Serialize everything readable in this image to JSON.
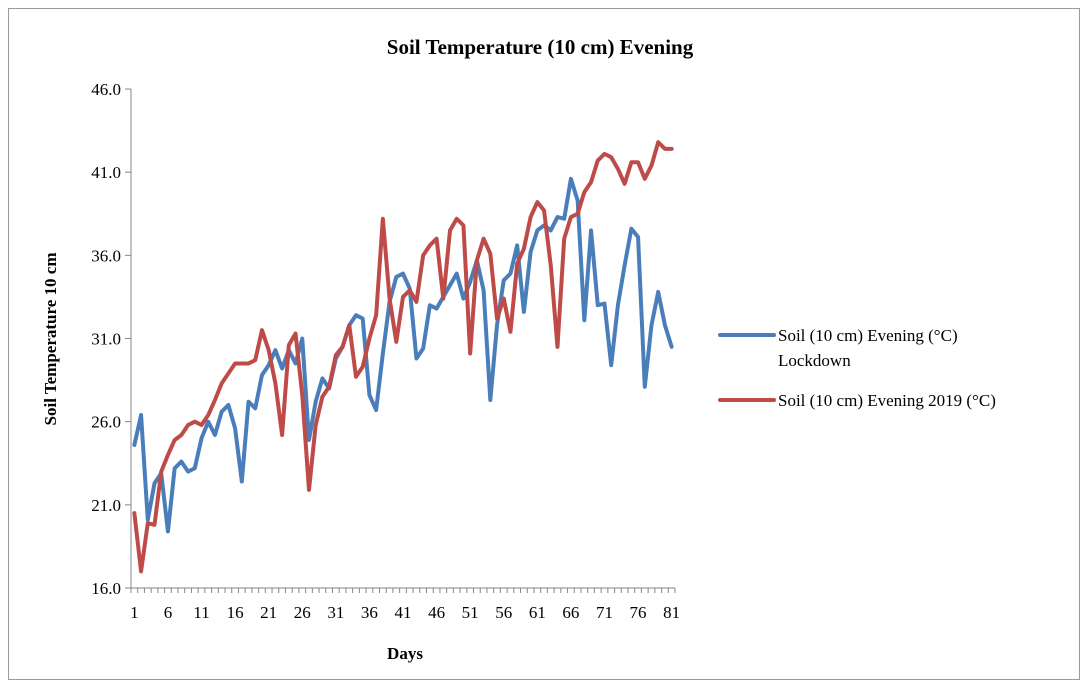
{
  "chart_data": {
    "type": "line",
    "title": "Soil Temperature (10 cm) Evening",
    "xlabel": "Days",
    "ylabel": "Soil Temperature 10 cm",
    "ylim": [
      16.0,
      46.0
    ],
    "y_ticks": [
      "16.0",
      "21.0",
      "26.0",
      "31.0",
      "36.0",
      "41.0",
      "46.0"
    ],
    "x_ticks": [
      "1",
      "6",
      "11",
      "16",
      "21",
      "26",
      "31",
      "36",
      "41",
      "46",
      "51",
      "56",
      "61",
      "66",
      "71",
      "76",
      "81"
    ],
    "x": [
      1,
      2,
      3,
      4,
      5,
      6,
      7,
      8,
      9,
      10,
      11,
      12,
      13,
      14,
      15,
      16,
      17,
      18,
      19,
      20,
      21,
      22,
      23,
      24,
      25,
      26,
      27,
      28,
      29,
      30,
      31,
      32,
      33,
      34,
      35,
      36,
      37,
      38,
      39,
      40,
      41,
      42,
      43,
      44,
      45,
      46,
      47,
      48,
      49,
      50,
      51,
      52,
      53,
      54,
      55,
      56,
      57,
      58,
      59,
      60,
      61,
      62,
      63,
      64,
      65,
      66,
      67,
      68,
      69,
      70,
      71,
      72,
      73,
      74,
      75,
      76,
      77,
      78,
      79,
      80,
      81
    ],
    "grid": false,
    "legend_position": "right",
    "series": [
      {
        "name": "Soil (10 cm) Evening (°C) Lockdown",
        "color": "#4a7ebb",
        "values": [
          24.6,
          26.4,
          20.1,
          22.3,
          22.9,
          19.4,
          23.2,
          23.6,
          23.0,
          23.2,
          25.0,
          26.0,
          25.2,
          26.6,
          27.0,
          25.6,
          22.4,
          27.2,
          26.8,
          28.8,
          29.4,
          30.3,
          29.2,
          30.3,
          29.5,
          31.0,
          24.9,
          27.2,
          28.6,
          28.0,
          29.8,
          30.5,
          31.8,
          32.4,
          32.2,
          27.6,
          26.7,
          30.1,
          33.2,
          34.7,
          34.9,
          34.0,
          29.8,
          30.4,
          33.0,
          32.8,
          33.5,
          34.2,
          34.9,
          33.4,
          34.4,
          35.7,
          33.9,
          27.3,
          31.8,
          34.5,
          34.9,
          36.6,
          32.6,
          36.2,
          37.5,
          37.8,
          37.5,
          38.3,
          38.2,
          40.6,
          39.3,
          32.1,
          37.5,
          33.0,
          33.1,
          29.4,
          33.0,
          35.4,
          37.6,
          37.1,
          28.1,
          31.8,
          33.8,
          31.8,
          30.5
        ]
      },
      {
        "name": "Soil (10 cm) Evening 2019 (°C)",
        "color": "#be4b48",
        "values": [
          20.5,
          17.0,
          19.9,
          19.8,
          23.0,
          24.0,
          24.9,
          25.2,
          25.8,
          26.0,
          25.8,
          26.4,
          27.3,
          28.3,
          28.9,
          29.5,
          29.5,
          29.5,
          29.7,
          31.5,
          30.3,
          28.3,
          25.2,
          30.6,
          31.3,
          27.6,
          21.9,
          25.8,
          27.5,
          28.1,
          30.0,
          30.5,
          31.8,
          28.7,
          29.3,
          31.0,
          32.4,
          38.2,
          33.4,
          30.8,
          33.5,
          33.9,
          33.2,
          36.0,
          36.6,
          37.0,
          33.4,
          37.5,
          38.2,
          37.8,
          30.1,
          35.7,
          37.0,
          36.1,
          32.2,
          33.4,
          31.4,
          35.5,
          36.4,
          38.3,
          39.2,
          38.7,
          35.4,
          30.5,
          37.0,
          38.3,
          38.5,
          39.8,
          40.4,
          41.7,
          42.1,
          41.9,
          41.2,
          40.3,
          41.6,
          41.6,
          40.6,
          41.4,
          42.8,
          42.4,
          42.4
        ]
      }
    ]
  }
}
